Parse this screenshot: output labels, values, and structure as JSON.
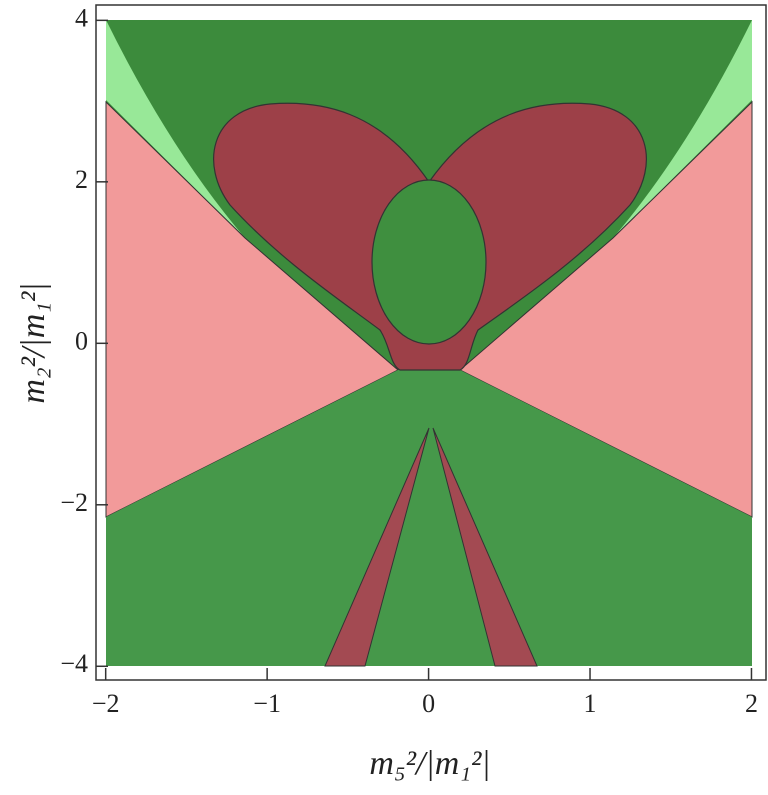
{
  "chart_data": {
    "type": "region",
    "x_label": "m₅²/|m₁²|",
    "y_label": "m₂²/|m₁²|",
    "xlim": [
      -2.06,
      2.09
    ],
    "ylim": [
      -4.17,
      4.19
    ],
    "xticks": [
      {
        "value": -2,
        "label": "−2"
      },
      {
        "value": -1,
        "label": "−1"
      },
      0,
      1,
      2
    ],
    "yticks": [
      {
        "value": -4,
        "label": "−4"
      },
      {
        "value": -2,
        "label": "−2"
      },
      0,
      2,
      4
    ]
  }
}
